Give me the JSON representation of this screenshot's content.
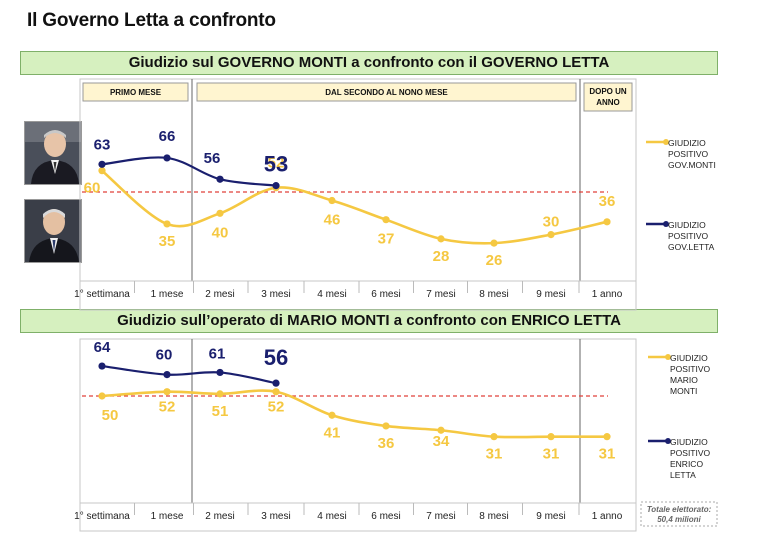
{
  "page_title": "Il Governo Letta a confronto",
  "colors": {
    "monti": "#f5c842",
    "letta": "#1a1f6e",
    "dashed": "#e0403a",
    "banner_bg": "#d6f0bf"
  },
  "periods": [
    "PRIMO MESE",
    "DAL SECONDO AL NONO MESE",
    "DOPO UN ANNO"
  ],
  "footnote_lines": [
    "Totale elettorato:",
    "50,4 milioni"
  ],
  "photos": [
    "enrico-letta-photo",
    "mario-monti-photo"
  ],
  "chart_data": [
    {
      "type": "line",
      "title": "Giudizio sul GOVERNO MONTI a confronto con il GOVERNO LETTA",
      "categories": [
        "1° settimana",
        "1 mese",
        "2 mesi",
        "3 mesi",
        "4 mesi",
        "6 mesi",
        "7 mesi",
        "8 mesi",
        "9 mesi",
        "1 anno"
      ],
      "series": [
        {
          "legend_lines": [
            "GIUDIZIO",
            "POSITIVO",
            "GOV.MONTI"
          ],
          "color": "#f5c842",
          "values": [
            60,
            35,
            40,
            52,
            46,
            37,
            28,
            26,
            30,
            36
          ]
        },
        {
          "legend_lines": [
            "GIUDIZIO",
            "POSITIVO",
            "GOV.LETTA"
          ],
          "color": "#1a1f6e",
          "values": [
            63,
            66,
            56,
            53,
            null,
            null,
            null,
            null,
            null,
            null
          ]
        }
      ],
      "reference_line": 50
    },
    {
      "type": "line",
      "title": "Giudizio sull’operato di MARIO MONTI a confronto con ENRICO LETTA",
      "categories": [
        "1° settimana",
        "1 mese",
        "2 mesi",
        "3 mesi",
        "4 mesi",
        "6 mesi",
        "7 mesi",
        "8 mesi",
        "9 mesi",
        "1 anno"
      ],
      "series": [
        {
          "legend_lines": [
            "GIUDIZIO",
            "POSITIVO",
            "MARIO",
            "MONTI"
          ],
          "color": "#f5c842",
          "values": [
            50,
            52,
            51,
            52,
            41,
            36,
            34,
            31,
            31,
            31
          ]
        },
        {
          "legend_lines": [
            "GIUDIZIO",
            "POSITIVO",
            "ENRICO",
            "LETTA"
          ],
          "color": "#1a1f6e",
          "values": [
            64,
            60,
            61,
            56,
            null,
            null,
            null,
            null,
            null,
            null
          ]
        }
      ],
      "reference_line": 50
    }
  ]
}
